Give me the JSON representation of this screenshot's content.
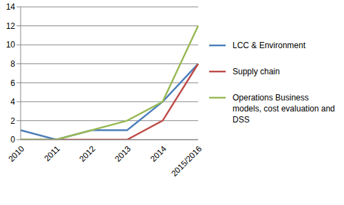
{
  "chart_data": {
    "type": "line",
    "categories": [
      "2010",
      "2011",
      "2012",
      "2013",
      "2014",
      "2015/2016"
    ],
    "series": [
      {
        "name": "LCC & Environment",
        "color": "#4a7ebb",
        "values": [
          1,
          0,
          1,
          1,
          4,
          8
        ]
      },
      {
        "name": "Supply chain",
        "color": "#be4b48",
        "values": [
          0,
          0,
          0,
          0,
          2,
          8
        ]
      },
      {
        "name": "Operations Business models, cost evaluation and DSS",
        "color": "#98b954",
        "values": [
          0,
          0,
          1,
          2,
          4,
          12
        ]
      }
    ],
    "ylim": [
      0,
      14
    ],
    "yticks": [
      0,
      2,
      4,
      6,
      8,
      10,
      12,
      14
    ],
    "grid": true,
    "legend": "right",
    "marker": "none"
  }
}
